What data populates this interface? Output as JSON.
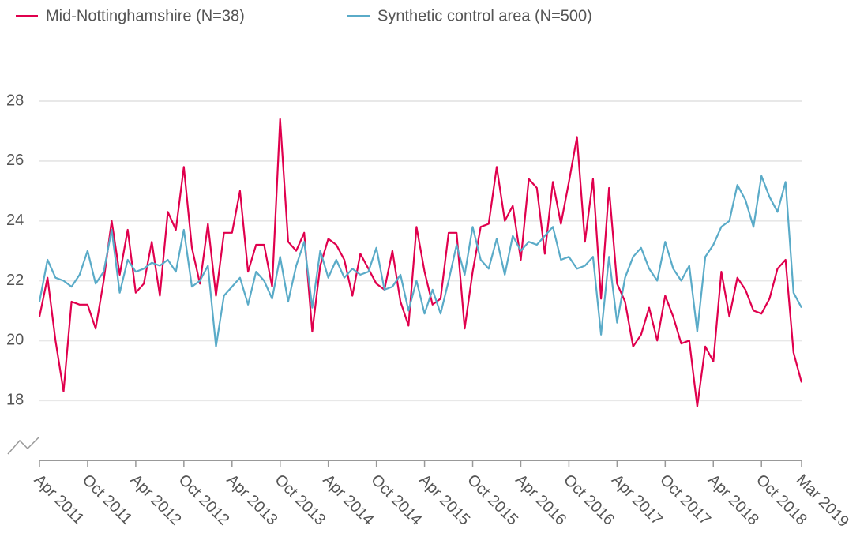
{
  "chart_data": {
    "type": "line",
    "categories": [
      "Apr 2011",
      null,
      null,
      null,
      null,
      null,
      "Oct 2011",
      null,
      null,
      null,
      null,
      null,
      "Apr 2012",
      null,
      null,
      null,
      null,
      null,
      "Oct 2012",
      null,
      null,
      null,
      null,
      null,
      "Apr 2013",
      null,
      null,
      null,
      null,
      null,
      "Oct 2013",
      null,
      null,
      null,
      null,
      null,
      "Apr 2014",
      null,
      null,
      null,
      null,
      null,
      "Oct 2014",
      null,
      null,
      null,
      null,
      null,
      "Apr 2015",
      null,
      null,
      null,
      null,
      null,
      "Oct 2015",
      null,
      null,
      null,
      null,
      null,
      "Apr 2016",
      null,
      null,
      null,
      null,
      null,
      "Oct 2016",
      null,
      null,
      null,
      null,
      null,
      "Apr 2017",
      null,
      null,
      null,
      null,
      null,
      "Oct 2017",
      null,
      null,
      null,
      null,
      null,
      "Apr 2018",
      null,
      null,
      null,
      null,
      null,
      "Oct 2018",
      null,
      null,
      null,
      null,
      "Mar 2019"
    ],
    "series": [
      {
        "name": "Mid-Nottinghamshire (N=38)",
        "color": "#e0004d",
        "values": [
          20.8,
          22.1,
          20.0,
          18.3,
          21.3,
          21.2,
          21.2,
          20.4,
          22.0,
          24.0,
          22.2,
          23.7,
          21.6,
          21.9,
          23.3,
          21.5,
          24.3,
          23.7,
          25.8,
          23.1,
          21.9,
          23.9,
          21.5,
          23.6,
          23.6,
          25.0,
          22.3,
          23.2,
          23.2,
          21.8,
          27.4,
          23.3,
          23.0,
          23.6,
          20.3,
          22.5,
          23.4,
          23.2,
          22.7,
          21.5,
          22.9,
          22.4,
          21.9,
          21.7,
          23.0,
          21.3,
          20.5,
          23.8,
          22.3,
          21.2,
          21.4,
          23.6,
          23.6,
          20.4,
          22.3,
          23.8,
          23.9,
          25.8,
          24.0,
          24.5,
          22.7,
          25.4,
          25.1,
          22.9,
          25.3,
          23.9,
          25.3,
          26.8,
          23.3,
          25.4,
          21.4,
          25.1,
          21.9,
          21.3,
          19.8,
          20.2,
          21.1,
          20.0,
          21.5,
          20.8,
          19.9,
          20.0,
          17.8,
          19.8,
          19.3,
          22.3,
          20.8,
          22.1,
          21.7,
          21.0,
          20.9,
          21.4,
          22.4,
          22.7,
          19.6,
          18.6
        ]
      },
      {
        "name": "Synthetic control area (N=500)",
        "color": "#5aabc8",
        "values": [
          21.3,
          22.7,
          22.1,
          22.0,
          21.8,
          22.2,
          23.0,
          21.9,
          22.3,
          23.7,
          21.6,
          22.7,
          22.3,
          22.4,
          22.6,
          22.5,
          22.7,
          22.3,
          23.7,
          21.8,
          22.0,
          22.5,
          19.8,
          21.5,
          21.8,
          22.1,
          21.2,
          22.3,
          22.0,
          21.4,
          22.8,
          21.3,
          22.5,
          23.3,
          21.1,
          23.0,
          22.1,
          22.7,
          22.1,
          22.4,
          22.2,
          22.3,
          23.1,
          21.7,
          21.8,
          22.2,
          21.0,
          22.0,
          20.9,
          21.7,
          20.9,
          22.0,
          23.2,
          22.2,
          23.8,
          22.7,
          22.4,
          23.4,
          22.2,
          23.5,
          23.0,
          23.3,
          23.2,
          23.5,
          23.8,
          22.7,
          22.8,
          22.4,
          22.5,
          22.8,
          20.2,
          22.8,
          20.6,
          22.1,
          22.8,
          23.1,
          22.4,
          22.0,
          23.3,
          22.4,
          22.0,
          22.5,
          20.3,
          22.8,
          23.2,
          23.8,
          24.0,
          25.2,
          24.7,
          23.8,
          25.5,
          24.8,
          24.3,
          25.3,
          21.6,
          21.1
        ]
      }
    ],
    "ylim": [
      16,
      28
    ],
    "yticks": [
      18,
      20,
      22,
      24,
      26,
      28
    ],
    "grid": true
  }
}
